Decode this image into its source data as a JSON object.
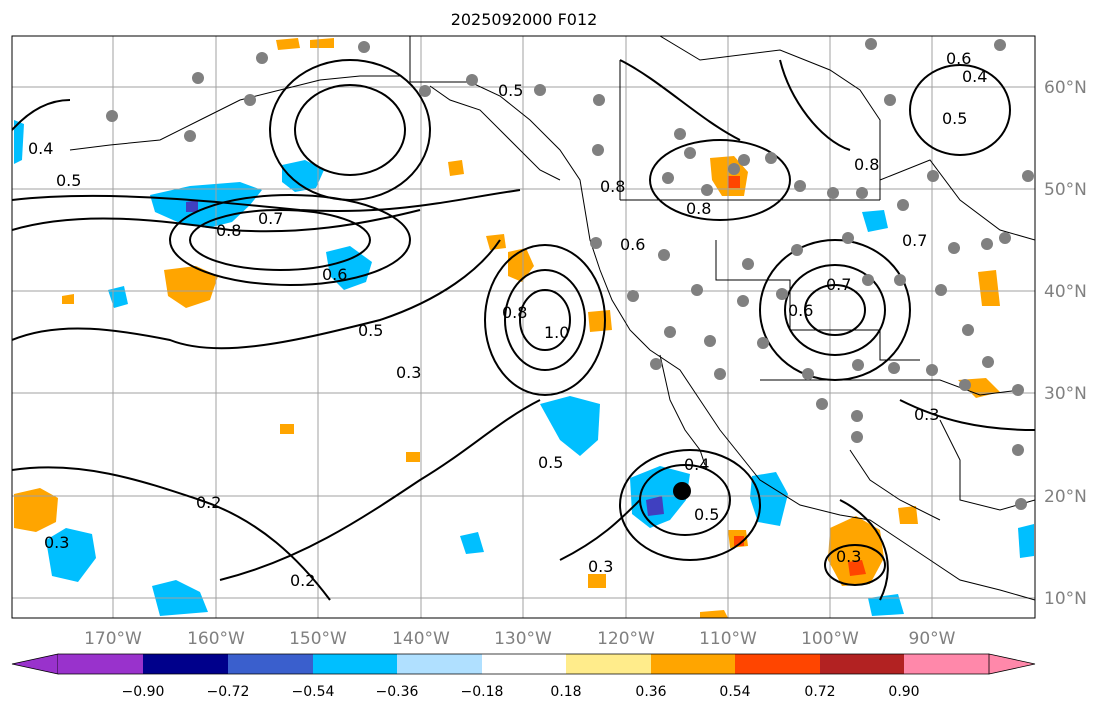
{
  "title": "2025092000 F012",
  "map": {
    "lon_labels": [
      "170°W",
      "160°W",
      "150°W",
      "140°W",
      "130°W",
      "120°W",
      "110°W",
      "100°W",
      "90°W"
    ],
    "lat_labels": [
      "60°N",
      "50°N",
      "40°N",
      "30°N",
      "20°N",
      "10°N"
    ],
    "contour_labels": [
      "0.5",
      "0.7",
      "0.8",
      "0.6",
      "0.5",
      "0.3",
      "0.2",
      "0.3",
      "1.0",
      "0.8",
      "0.5",
      "0.4",
      "0.5",
      "0.3",
      "0.8",
      "0.6",
      "0.5",
      "0.7",
      "0.6",
      "0.8",
      "0.3",
      "0.4",
      "0.2",
      "0.3",
      "0.4",
      "0.6",
      "0.5",
      "0.8",
      "0.7"
    ],
    "colors": {
      "positive_cyan": "#00bfff",
      "light_blue": "#add8ff",
      "orange": "#ffa500",
      "dark_blue": "#4040c0",
      "station": "#808080",
      "contour": "#000000",
      "grid": "#a0a0a0"
    }
  },
  "colorbar": {
    "ticks": [
      "−0.90",
      "−0.72",
      "−0.54",
      "−0.36",
      "−0.18",
      "0.18",
      "0.36",
      "0.54",
      "0.72",
      "0.90"
    ],
    "colors": [
      "#9932cc",
      "#00008b",
      "#3a5fcd",
      "#00bfff",
      "#b0e0ff",
      "#ffffff",
      "#ffec8b",
      "#ffa500",
      "#ff4500",
      "#b22222",
      "#ff88aa"
    ]
  }
}
